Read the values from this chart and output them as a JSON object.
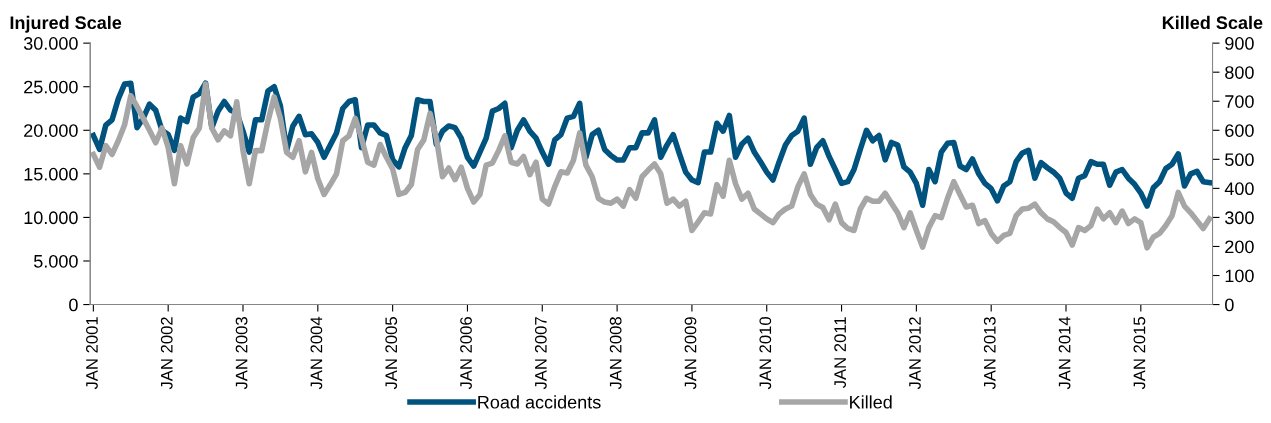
{
  "chart_data": {
    "type": "line",
    "ylabel": "Injured Scale",
    "y2label": "Killed Scale",
    "categories": [
      "JAN 2001",
      null,
      null,
      null,
      null,
      null,
      null,
      null,
      null,
      null,
      null,
      null,
      "JAN 2002",
      null,
      null,
      null,
      null,
      null,
      null,
      null,
      null,
      null,
      null,
      null,
      "JAN 2003",
      null,
      null,
      null,
      null,
      null,
      null,
      null,
      null,
      null,
      null,
      null,
      "JAN 2004",
      null,
      null,
      null,
      null,
      null,
      null,
      null,
      null,
      null,
      null,
      null,
      "JAN 2005",
      null,
      null,
      null,
      null,
      null,
      null,
      null,
      null,
      null,
      null,
      null,
      "JAN 2006",
      null,
      null,
      null,
      null,
      null,
      null,
      null,
      null,
      null,
      null,
      null,
      "JAN 2007",
      null,
      null,
      null,
      null,
      null,
      null,
      null,
      null,
      null,
      null,
      null,
      "JAN 2008",
      null,
      null,
      null,
      null,
      null,
      null,
      null,
      null,
      null,
      null,
      null,
      "JAN 2009",
      null,
      null,
      null,
      null,
      null,
      null,
      null,
      null,
      null,
      null,
      null,
      "JAN 2010",
      null,
      null,
      null,
      null,
      null,
      null,
      null,
      null,
      null,
      null,
      null,
      "JAN 2011",
      null,
      null,
      null,
      null,
      null,
      null,
      null,
      null,
      null,
      null,
      null,
      "JAN 2012",
      null,
      null,
      null,
      null,
      null,
      null,
      null,
      null,
      null,
      null,
      null,
      "JAN 2013",
      null,
      null,
      null,
      null,
      null,
      null,
      null,
      null,
      null,
      null,
      null,
      "JAN 2014",
      null,
      null,
      null,
      null,
      null,
      null,
      null,
      null,
      null,
      null,
      null,
      "JAN 2015",
      null,
      null,
      null,
      null,
      null,
      null,
      null,
      null,
      null,
      null,
      null
    ],
    "series": [
      {
        "name": "Road accidents",
        "color": "#00527f",
        "values": [
          19400,
          17800,
          20600,
          21200,
          23600,
          25300,
          25400,
          20300,
          21400,
          23000,
          22300,
          20000,
          19500,
          17700,
          21400,
          21000,
          23800,
          24200,
          25400,
          20300,
          22200,
          23300,
          22300,
          22000,
          19900,
          17500,
          21200,
          21200,
          24500,
          25000,
          22800,
          17700,
          20500,
          21600,
          19500,
          19600,
          18600,
          16900,
          18300,
          19700,
          22500,
          23300,
          23500,
          18000,
          20600,
          20600,
          19700,
          19400,
          16600,
          15800,
          18000,
          19400,
          23500,
          23300,
          23300,
          18400,
          19900,
          20500,
          20300,
          19100,
          16900,
          15900,
          17500,
          19100,
          22200,
          22500,
          23100,
          18000,
          20000,
          21200,
          19900,
          19100,
          17500,
          16100,
          18900,
          19500,
          21400,
          21600,
          23100,
          16900,
          19500,
          20000,
          17800,
          17100,
          16600,
          16600,
          18000,
          18000,
          19700,
          19700,
          21200,
          16900,
          18300,
          19500,
          17300,
          15200,
          14300,
          14000,
          17500,
          17500,
          20800,
          19900,
          21700,
          16900,
          18400,
          19100,
          17500,
          16400,
          15200,
          14300,
          16400,
          18300,
          19400,
          19900,
          21400,
          16100,
          18000,
          18800,
          17000,
          15500,
          13900,
          14100,
          15500,
          17800,
          20000,
          18800,
          19400,
          16600,
          18600,
          18300,
          15800,
          15200,
          13900,
          11400,
          15500,
          14100,
          17500,
          18500,
          18600,
          15900,
          15500,
          16700,
          15000,
          13900,
          13300,
          11900,
          13600,
          14100,
          16400,
          17400,
          17700,
          14500,
          16300,
          15700,
          15200,
          14500,
          12800,
          12200,
          14500,
          14800,
          16400,
          16100,
          16100,
          13700,
          15200,
          15500,
          14500,
          13800,
          12800,
          11300,
          13400,
          14100,
          15600,
          16100,
          17300,
          13600,
          15000,
          15300,
          14100,
          14000
        ]
      },
      {
        "name": "Killed",
        "color": "#a6a6a6",
        "axis": "y2",
        "values": [
          517,
          473,
          547,
          517,
          564,
          618,
          719,
          682,
          641,
          600,
          557,
          608,
          541,
          416,
          547,
          484,
          574,
          608,
          759,
          608,
          567,
          598,
          581,
          698,
          530,
          416,
          530,
          530,
          631,
          715,
          641,
          524,
          507,
          564,
          457,
          524,
          433,
          379,
          413,
          450,
          564,
          581,
          641,
          574,
          490,
          480,
          551,
          507,
          467,
          379,
          386,
          413,
          534,
          567,
          658,
          574,
          440,
          470,
          430,
          473,
          400,
          353,
          379,
          480,
          487,
          530,
          581,
          490,
          484,
          510,
          447,
          490,
          363,
          346,
          406,
          457,
          453,
          497,
          591,
          480,
          440,
          366,
          353,
          349,
          363,
          339,
          396,
          366,
          440,
          463,
          484,
          450,
          349,
          363,
          339,
          356,
          255,
          285,
          316,
          312,
          413,
          373,
          497,
          416,
          363,
          383,
          329,
          312,
          295,
          282,
          312,
          329,
          339,
          406,
          450,
          379,
          346,
          334,
          292,
          346,
          282,
          262,
          255,
          329,
          366,
          356,
          356,
          383,
          349,
          316,
          265,
          316,
          255,
          198,
          265,
          306,
          299,
          366,
          423,
          379,
          336,
          342,
          279,
          289,
          245,
          218,
          238,
          245,
          306,
          329,
          332,
          346,
          316,
          295,
          285,
          265,
          248,
          205,
          265,
          255,
          272,
          329,
          295,
          316,
          282,
          322,
          279,
          295,
          282,
          195,
          232,
          245,
          272,
          306,
          386,
          339,
          316,
          289,
          262,
          295
        ]
      }
    ],
    "ylim": [
      0,
      30000
    ],
    "yticks": [
      {
        "value": 0,
        "label": "0"
      },
      {
        "value": 5000,
        "label": "5.000"
      },
      {
        "value": 10000,
        "label": "10.000"
      },
      {
        "value": 15000,
        "label": "15.000"
      },
      {
        "value": 20000,
        "label": "20.000"
      },
      {
        "value": 25000,
        "label": "25.000"
      },
      {
        "value": 30000,
        "label": "30.000"
      }
    ],
    "y2lim": [
      0,
      900
    ],
    "y2ticks": [
      0,
      100,
      200,
      300,
      400,
      500,
      600,
      700,
      800,
      900
    ],
    "legend": "bottom",
    "grid": false,
    "marker": "none",
    "line_style": "solid"
  }
}
